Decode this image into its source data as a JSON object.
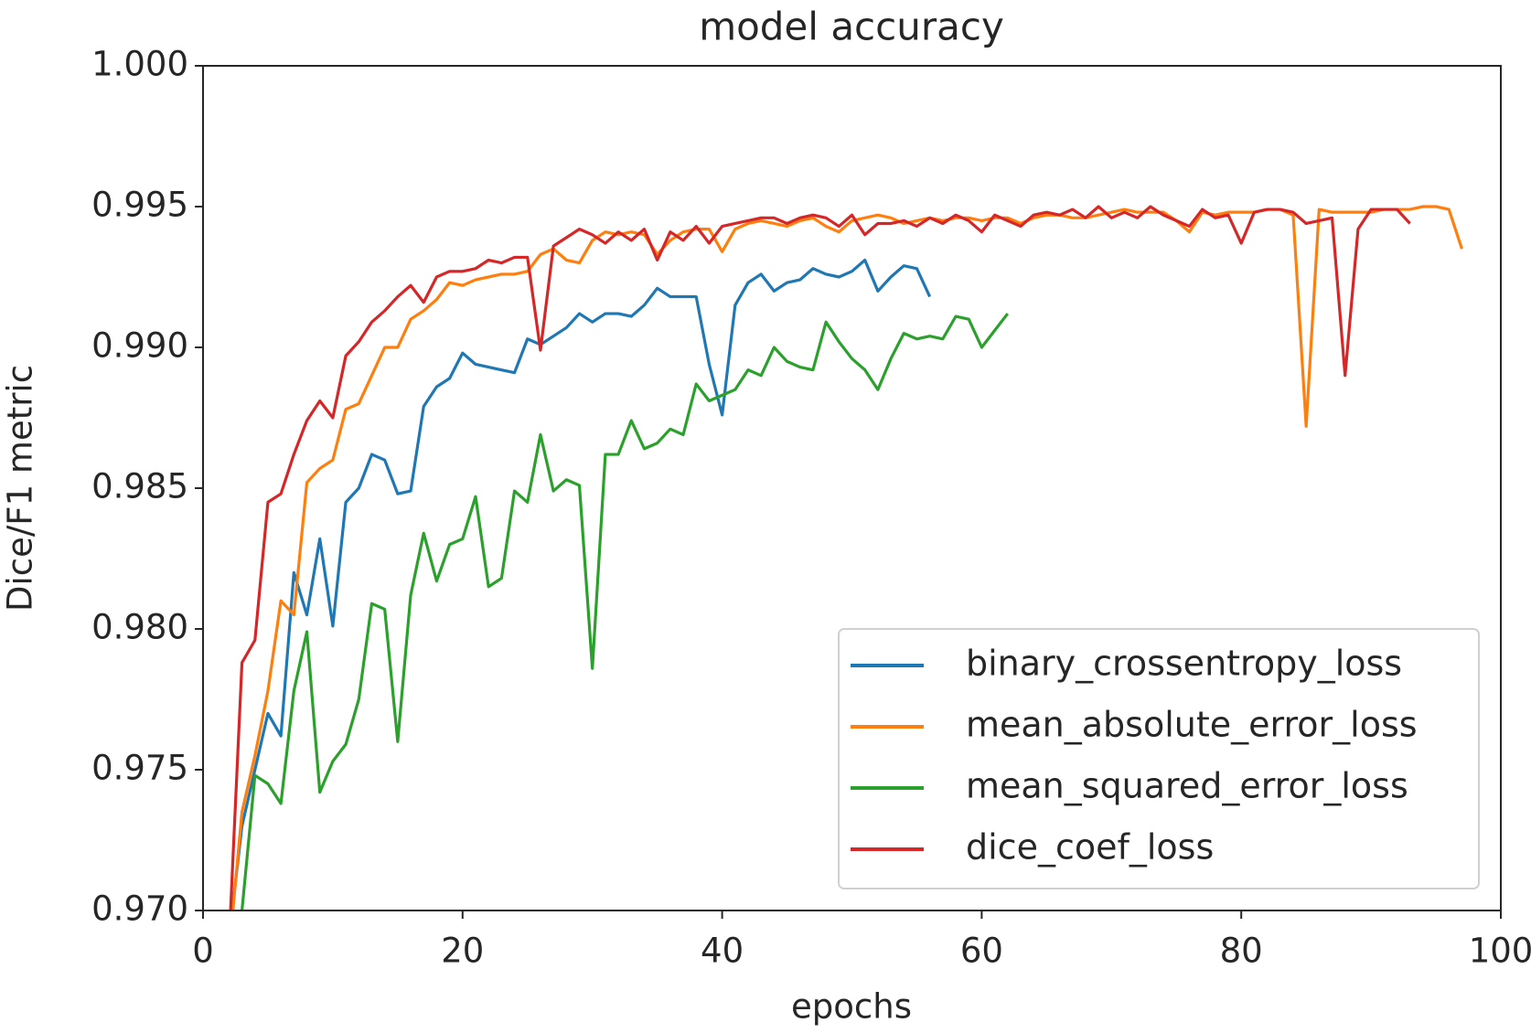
{
  "chart_data": {
    "type": "line",
    "title": "model accuracy",
    "x_label": "epochs",
    "y_label": "Dice/F1 metric",
    "x": [
      2,
      3,
      4,
      5,
      6,
      7,
      8,
      9,
      10,
      11,
      12,
      13,
      14,
      15,
      16,
      17,
      18,
      19,
      20,
      21,
      22,
      23,
      24,
      25,
      26,
      27,
      28,
      29,
      30,
      31,
      32,
      33,
      34,
      35,
      36,
      37,
      38,
      39,
      40,
      41,
      42,
      43,
      44,
      45,
      46,
      47,
      48,
      49,
      50,
      51,
      52,
      53,
      54,
      55,
      56,
      57,
      58,
      59,
      60,
      61,
      62,
      63,
      64,
      65,
      66,
      67,
      68,
      69,
      70,
      71,
      72,
      73,
      74,
      75,
      76,
      77,
      78,
      79,
      80,
      81,
      82,
      83,
      84,
      85,
      86,
      87,
      88,
      89,
      90,
      91,
      92,
      93,
      94,
      95,
      96,
      97
    ],
    "xlim": [
      0,
      100
    ],
    "xticks": [
      0,
      20,
      40,
      60,
      80,
      100
    ],
    "ylim": [
      0.97,
      1.0
    ],
    "yticks": [
      {
        "value": 0.97,
        "label": "0.970"
      },
      0.975,
      {
        "value": 0.98,
        "label": "0.980"
      },
      0.985,
      {
        "value": 0.99,
        "label": "0.990"
      },
      0.995,
      {
        "value": 1.0,
        "label": "1.000"
      }
    ],
    "legend": "lower right",
    "series": [
      {
        "name": "binary_crossentropy_loss",
        "color": "#1f77b4",
        "values": [
          0.969,
          0.973,
          0.975,
          0.977,
          0.9762,
          0.982,
          0.9805,
          0.9832,
          0.9801,
          0.9845,
          0.985,
          0.9862,
          0.986,
          0.9848,
          0.9849,
          0.9879,
          0.9886,
          0.9889,
          0.9898,
          0.9894,
          0.9893,
          0.9892,
          0.9891,
          0.9903,
          0.9901,
          0.9904,
          0.9907,
          0.9912,
          0.9909,
          0.9912,
          0.9912,
          0.9911,
          0.9915,
          0.9921,
          0.9918,
          0.9918,
          0.9918,
          0.9894,
          0.9876,
          0.9915,
          0.9923,
          0.9926,
          0.992,
          0.9923,
          0.9924,
          0.9928,
          0.9926,
          0.9925,
          0.9927,
          0.9931,
          0.992,
          0.9925,
          0.9929,
          0.9928,
          0.9918,
          null,
          null,
          null,
          null,
          null,
          null,
          null,
          null,
          null,
          null,
          null,
          null,
          null,
          null,
          null,
          null,
          null,
          null,
          null,
          null,
          null,
          null,
          null,
          null,
          null,
          null,
          null,
          null,
          null,
          null,
          null,
          null,
          null,
          null,
          null,
          null,
          null,
          null,
          null,
          null,
          null
        ]
      },
      {
        "name": "mean_absolute_error_loss",
        "color": "#ff7f0e",
        "values": [
          0.9685,
          0.9735,
          0.9755,
          0.9778,
          0.981,
          0.9805,
          0.9852,
          0.9857,
          0.986,
          0.9878,
          0.988,
          0.989,
          0.99,
          0.99,
          0.991,
          0.9913,
          0.9917,
          0.9923,
          0.9922,
          0.9924,
          0.9925,
          0.9926,
          0.9926,
          0.9927,
          0.9933,
          0.9935,
          0.9931,
          0.993,
          0.9938,
          0.9941,
          0.994,
          0.9941,
          0.994,
          0.9933,
          0.9938,
          0.9941,
          0.9942,
          0.9942,
          0.9934,
          0.9942,
          0.9944,
          0.9945,
          0.9944,
          0.9943,
          0.9945,
          0.9946,
          0.9943,
          0.9941,
          0.9945,
          0.9946,
          0.9947,
          0.9946,
          0.9944,
          0.9945,
          0.9946,
          0.9945,
          0.9946,
          0.9946,
          0.9945,
          0.9946,
          0.9946,
          0.9944,
          0.9946,
          0.9947,
          0.9947,
          0.9946,
          0.9946,
          0.9947,
          0.9948,
          0.9949,
          0.9948,
          0.9948,
          0.9948,
          0.9945,
          0.9941,
          0.9948,
          0.9947,
          0.9948,
          0.9948,
          0.9948,
          0.9949,
          0.9949,
          0.9947,
          0.9872,
          0.9949,
          0.9948,
          0.9948,
          0.9948,
          0.9948,
          0.9949,
          0.9949,
          0.9949,
          0.995,
          0.995,
          0.9949,
          0.9935
        ]
      },
      {
        "name": "mean_squared_error_loss",
        "color": "#2ca02c",
        "values": [
          0.966,
          0.97,
          0.9748,
          0.9745,
          0.9738,
          0.9778,
          0.9799,
          0.9742,
          0.9753,
          0.9759,
          0.9775,
          0.9809,
          0.9807,
          0.976,
          0.9812,
          0.9834,
          0.9817,
          0.983,
          0.9832,
          0.9847,
          0.9815,
          0.9818,
          0.9849,
          0.9845,
          0.9869,
          0.9849,
          0.9853,
          0.9851,
          0.9786,
          0.9862,
          0.9862,
          0.9874,
          0.9864,
          0.9866,
          0.9871,
          0.9869,
          0.9887,
          0.9881,
          0.9883,
          0.9885,
          0.9892,
          0.989,
          0.99,
          0.9895,
          0.9893,
          0.9892,
          0.9909,
          0.9902,
          0.9896,
          0.9892,
          0.9885,
          0.9896,
          0.9905,
          0.9903,
          0.9904,
          0.9903,
          0.9911,
          0.991,
          0.99,
          0.9906,
          0.9912,
          null,
          null,
          null,
          null,
          null,
          null,
          null,
          null,
          null,
          null,
          null,
          null,
          null,
          null,
          null,
          null,
          null,
          null,
          null,
          null,
          null,
          null,
          null,
          null,
          null,
          null,
          null,
          null,
          null,
          null,
          null,
          null,
          null,
          null,
          null
        ]
      },
      {
        "name": "dice_coef_loss",
        "color": "#d62728",
        "values": [
          0.9688,
          0.9788,
          0.9796,
          0.9845,
          0.9848,
          0.9862,
          0.9874,
          0.9881,
          0.9875,
          0.9897,
          0.9902,
          0.9909,
          0.9913,
          0.9918,
          0.9922,
          0.9916,
          0.9925,
          0.9927,
          0.9927,
          0.9928,
          0.9931,
          0.993,
          0.9932,
          0.9932,
          0.9899,
          0.9936,
          0.9939,
          0.9942,
          0.994,
          0.9937,
          0.9941,
          0.9938,
          0.9942,
          0.9931,
          0.9941,
          0.9938,
          0.9943,
          0.9937,
          0.9943,
          0.9944,
          0.9945,
          0.9946,
          0.9946,
          0.9944,
          0.9946,
          0.9947,
          0.9946,
          0.9943,
          0.9947,
          0.994,
          0.9944,
          0.9944,
          0.9945,
          0.9943,
          0.9946,
          0.9944,
          0.9947,
          0.9945,
          0.9941,
          0.9947,
          0.9945,
          0.9943,
          0.9947,
          0.9948,
          0.9947,
          0.9949,
          0.9946,
          0.995,
          0.9946,
          0.9948,
          0.9946,
          0.995,
          0.9947,
          0.9945,
          0.9943,
          0.9949,
          0.9946,
          0.9947,
          0.9937,
          0.9948,
          0.9949,
          0.9949,
          0.9948,
          0.9944,
          0.9945,
          0.9946,
          0.989,
          0.9942,
          0.9949,
          0.9949,
          0.9949,
          0.9944,
          null,
          null,
          null,
          null
        ]
      }
    ]
  }
}
